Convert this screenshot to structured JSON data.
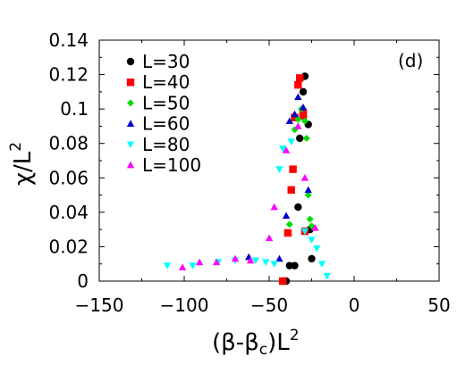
{
  "chart_data": {
    "type": "scatter",
    "panel_label": "(d)",
    "xlabel_main": "(β-β",
    "xlabel_sub": "c",
    "xlabel_tail": ")L",
    "xlabel_sup": "2",
    "ylabel_main": "χ/L",
    "ylabel_sup": "2",
    "xlim": [
      -150,
      50
    ],
    "ylim": [
      0,
      0.14
    ],
    "xticks": [
      -150,
      -100,
      -50,
      0,
      50
    ],
    "yticks": [
      0,
      0.02,
      0.04,
      0.06,
      0.08,
      0.1,
      0.12,
      0.14
    ],
    "xtick_labels": [
      "−150",
      "−100",
      "−50",
      "0",
      "50"
    ],
    "ytick_labels": [
      "0",
      "0.02",
      "0.04",
      "0.06",
      "0.08",
      "0.1",
      "0.12",
      "0.14"
    ],
    "grid": false,
    "legend_position": "top-left",
    "series": [
      {
        "name": "L=30",
        "marker": "circle",
        "color": "#000000",
        "x": [
          -42,
          -41,
          -40,
          -38,
          -35,
          -33,
          -32,
          -30,
          -29,
          -27,
          -26,
          -25
        ],
        "y": [
          0.0,
          0.0,
          0.0,
          0.009,
          0.009,
          0.043,
          0.083,
          0.11,
          0.119,
          0.091,
          0.03,
          0.013
        ]
      },
      {
        "name": "L=40",
        "marker": "square",
        "color": "#ff0000",
        "x": [
          -42,
          -39,
          -37,
          -36,
          -35,
          -33,
          -32,
          -30,
          -30,
          -29
        ],
        "y": [
          0.0,
          0.028,
          0.053,
          0.065,
          0.095,
          0.114,
          0.118,
          0.098,
          0.096,
          0.029
        ]
      },
      {
        "name": "L=50",
        "marker": "diamond",
        "color": "#00dd00",
        "x": [
          -38,
          -35,
          -33,
          -31,
          -29,
          -28,
          -27,
          -26,
          -25
        ],
        "y": [
          0.033,
          0.088,
          0.094,
          0.1,
          0.093,
          0.083,
          0.05,
          0.036,
          0.032
        ]
      },
      {
        "name": "L=60",
        "marker": "triangle-up",
        "color": "#0000cc",
        "x": [
          -62,
          -44,
          -40,
          -38,
          -35,
          -33,
          -30,
          -27
        ],
        "y": [
          0.014,
          0.013,
          0.038,
          0.093,
          0.097,
          0.107,
          0.101,
          0.053
        ]
      },
      {
        "name": "L=80",
        "marker": "triangle-down",
        "color": "#00ffff",
        "x": [
          -110,
          -95,
          -80,
          -70,
          -58,
          -52,
          -47,
          -44,
          -42,
          -37,
          -29,
          -25,
          -22,
          -19,
          -16
        ],
        "y": [
          0.009,
          0.009,
          0.011,
          0.012,
          0.012,
          0.011,
          0.01,
          0.065,
          0.077,
          0.081,
          0.029,
          0.024,
          0.019,
          0.01,
          0.003
        ]
      },
      {
        "name": "L=100",
        "marker": "triangle-up",
        "color": "#ff00ff",
        "x": [
          -101,
          -91,
          -81,
          -70,
          -61,
          -50,
          -47,
          -40,
          -33,
          -29,
          -23
        ],
        "y": [
          0.008,
          0.011,
          0.011,
          0.013,
          0.012,
          0.025,
          0.043,
          0.076,
          0.09,
          0.06,
          0.031
        ]
      }
    ]
  }
}
